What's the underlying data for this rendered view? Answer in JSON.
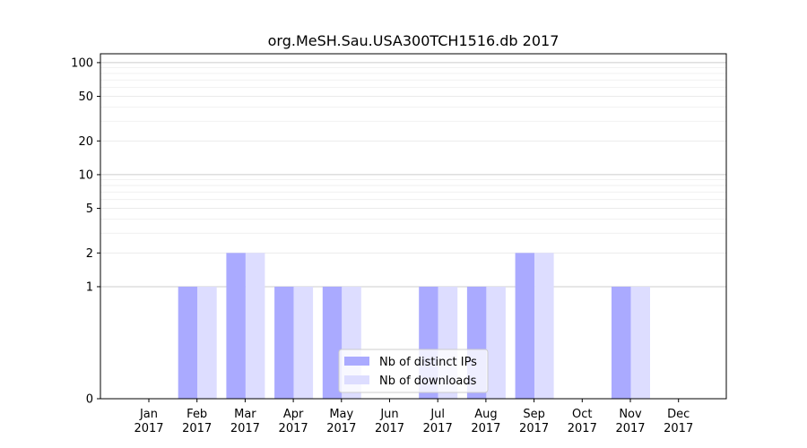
{
  "chart_data": {
    "type": "bar",
    "title": "org.MeSH.Sau.USA300TCH1516.db 2017",
    "xlabel": "",
    "ylabel": "",
    "y_scale": "symlog",
    "ylim": [
      0,
      120
    ],
    "y_ticks": [
      0,
      1,
      2,
      5,
      10,
      20,
      50,
      100
    ],
    "categories": [
      "Jan\n2017",
      "Feb\n2017",
      "Mar\n2017",
      "Apr\n2017",
      "May\n2017",
      "Jun\n2017",
      "Jul\n2017",
      "Aug\n2017",
      "Sep\n2017",
      "Oct\n2017",
      "Nov\n2017",
      "Dec\n2017"
    ],
    "series": [
      {
        "name": "Nb of distinct IPs",
        "color": "#aaaaff",
        "values": [
          0,
          1,
          2,
          1,
          1,
          0,
          1,
          1,
          2,
          0,
          1,
          0
        ]
      },
      {
        "name": "Nb of downloads",
        "color": "#ddddff",
        "values": [
          0,
          1,
          2,
          1,
          1,
          0,
          1,
          1,
          2,
          0,
          1,
          0
        ]
      }
    ],
    "legend_position": "bottom-center",
    "grid": true
  }
}
